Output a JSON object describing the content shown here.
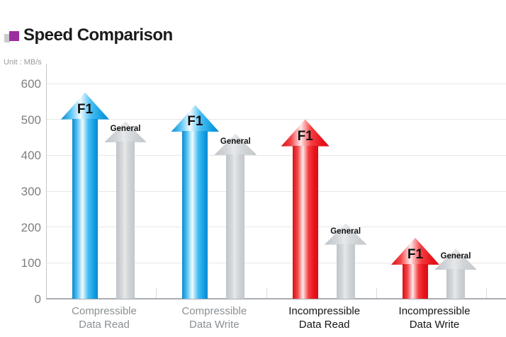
{
  "header": {
    "title": "Speed Comparison",
    "bullet_icon": "two-tone-square-bullet"
  },
  "unit_label": "Unit : MB/s",
  "colors": {
    "accent_purple": "#9b2f9e",
    "f1_blue": "#29abe2",
    "f1_red": "#ed1c24",
    "general_gray": "#cdd1d5",
    "gray_category_text": "#8b9094",
    "black_category_text": "#161616",
    "axis_text": "#7f7f7f"
  },
  "chart_data": {
    "type": "bar",
    "title": "Speed Comparison",
    "unit": "MB/s",
    "categories": [
      "Compressible\nData Read",
      "Compressible\nData Write",
      "Incompressible\nData Read",
      "Incompressible\nData Write"
    ],
    "category_text_colors": [
      "#8b9094",
      "#8b9094",
      "#161616",
      "#161616"
    ],
    "series": [
      {
        "name": "General",
        "values": [
          495,
          460,
          210,
          140
        ],
        "styles": [
          "gray",
          "gray",
          "gray",
          "gray"
        ],
        "role": "general"
      },
      {
        "name": "F1",
        "values": [
          575,
          540,
          500,
          170
        ],
        "styles": [
          "blue",
          "blue",
          "red",
          "red"
        ],
        "role": "f1"
      }
    ],
    "xlabel": "",
    "ylabel": "",
    "ylim": [
      0,
      600
    ],
    "ytick_step": 100,
    "grid": "horizontal",
    "legend_position": "labels-on-arrows",
    "marker_shape": "block-arrow-up"
  }
}
